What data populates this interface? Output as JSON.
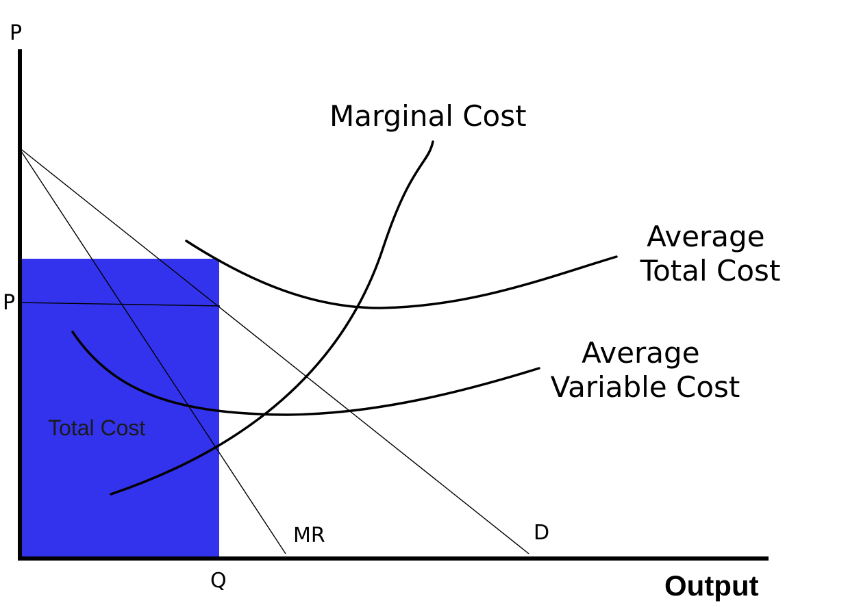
{
  "axes": {
    "y_label": "P",
    "x_label": "Output"
  },
  "markers": {
    "price": "P",
    "quantity": "Q"
  },
  "curves": {
    "marginal_cost": "Marginal Cost",
    "average_total_cost": [
      "Average",
      "Total Cost"
    ],
    "average_variable_cost": [
      "Average",
      "Variable Cost"
    ],
    "marginal_revenue": "MR",
    "demand": "D"
  },
  "shaded_area": {
    "label": "Total Cost",
    "color": "#3333ee"
  }
}
